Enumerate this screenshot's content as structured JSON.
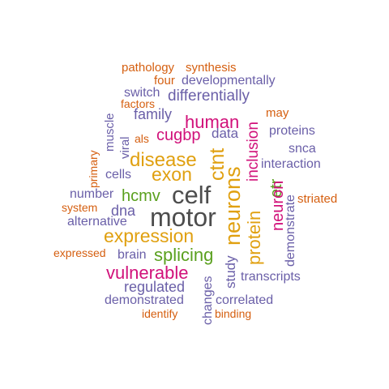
{
  "words": {
    "pathology": "pathology",
    "synthesis": "synthesis",
    "four": "four",
    "developmentally": "developmentally",
    "switch": "switch",
    "differentially": "differentially",
    "factors": "factors",
    "may": "may",
    "family": "family",
    "human": "human",
    "muscle": "muscle",
    "cugbp": "cugbp",
    "data": "data",
    "proteins": "proteins",
    "viral": "viral",
    "als": "als",
    "inclusion": "inclusion",
    "snca": "snca",
    "primary": "primary",
    "disease": "disease",
    "ctnt": "ctnt",
    "interaction": "interaction",
    "cells": "cells",
    "exon": "exon",
    "neurons": "neurons",
    "number": "number",
    "hcmv": "hcmv",
    "celf": "celf",
    "etr": "etr",
    "neuron": "neuron",
    "striated": "striated",
    "system": "system",
    "dna": "dna",
    "motor": "motor",
    "alternative": "alternative",
    "demonstrate": "demonstrate",
    "expression": "expression",
    "protein": "protein",
    "expressed": "expressed",
    "brain": "brain",
    "splicing": "splicing",
    "study": "study",
    "vulnerable": "vulnerable",
    "changes": "changes",
    "transcripts": "transcripts",
    "regulated": "regulated",
    "demonstrated": "demonstrated",
    "correlated": "correlated",
    "identify": "identify",
    "binding": "binding"
  }
}
